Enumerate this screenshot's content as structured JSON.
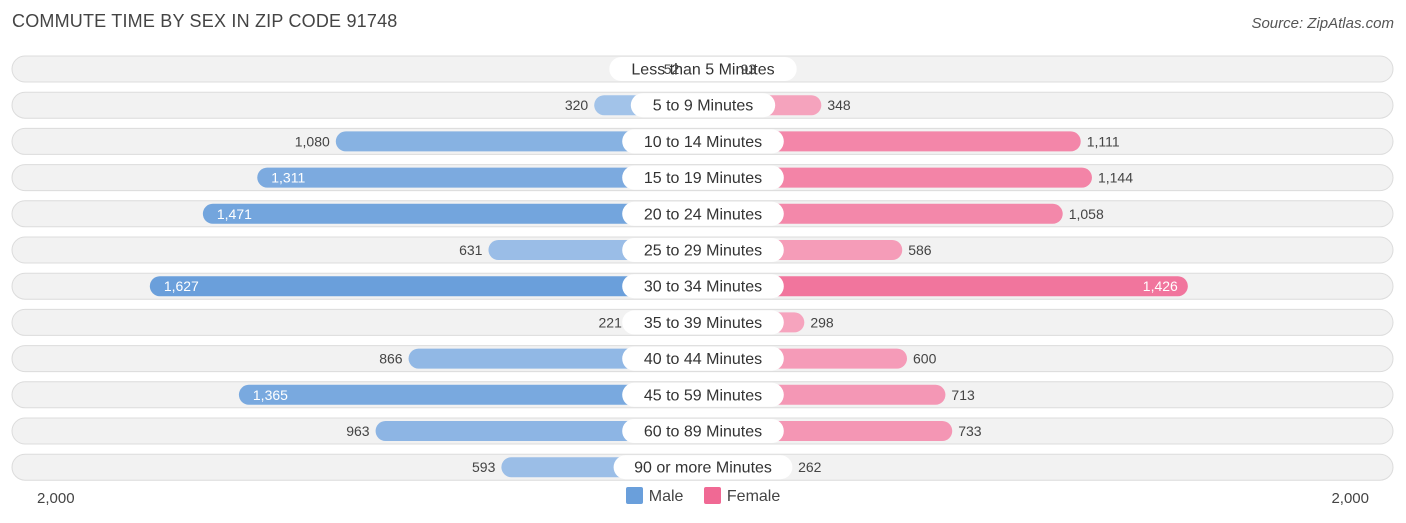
{
  "title": "COMMUTE TIME BY SEX IN ZIP CODE 91748",
  "source": "Source: ZipAtlas.com",
  "axis": {
    "left_label": "2,000",
    "right_label": "2,000"
  },
  "legend": {
    "male_label": "Male",
    "female_label": "Female"
  },
  "colors": {
    "male_light": "#a7c6ea",
    "male_dark": "#6a9fdb",
    "female_light": "#f6a8c1",
    "female_dark": "#f06994",
    "row_bg": "#f2f2f2",
    "row_border": "#dcdcdc"
  },
  "chart_data": {
    "type": "bar",
    "orientation": "horizontal-diverging",
    "max": 2000,
    "categories": [
      "Less than 5 Minutes",
      "5 to 9 Minutes",
      "10 to 14 Minutes",
      "15 to 19 Minutes",
      "20 to 24 Minutes",
      "25 to 29 Minutes",
      "30 to 34 Minutes",
      "35 to 39 Minutes",
      "40 to 44 Minutes",
      "45 to 59 Minutes",
      "60 to 89 Minutes",
      "90 or more Minutes"
    ],
    "series": [
      {
        "name": "Male",
        "values": [
          52,
          320,
          1080,
          1311,
          1471,
          631,
          1627,
          221,
          866,
          1365,
          963,
          593
        ],
        "labels": [
          "52",
          "320",
          "1,080",
          "1,311",
          "1,471",
          "631",
          "1,627",
          "221",
          "866",
          "1,365",
          "963",
          "593"
        ]
      },
      {
        "name": "Female",
        "values": [
          93,
          348,
          1111,
          1144,
          1058,
          586,
          1426,
          298,
          600,
          713,
          733,
          262
        ],
        "labels": [
          "93",
          "348",
          "1,111",
          "1,144",
          "1,058",
          "586",
          "1,426",
          "298",
          "600",
          "713",
          "733",
          "262"
        ]
      }
    ]
  }
}
